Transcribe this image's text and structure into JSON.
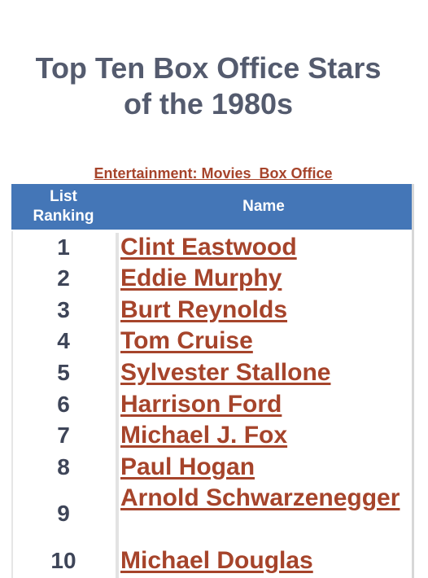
{
  "title_line1": "Top Ten Box Office Stars",
  "title_line2": "of the 1980s",
  "breadcrumb": "Entertainment: Movies  Box Office",
  "table": {
    "header_rank_line1": "List",
    "header_rank_line2": "Ranking",
    "header_name": "Name",
    "rows": [
      {
        "rank": "1",
        "name": "Clint Eastwood"
      },
      {
        "rank": "2",
        "name": "Eddie Murphy"
      },
      {
        "rank": "3",
        "name": "Burt Reynolds"
      },
      {
        "rank": "4",
        "name": "Tom Cruise"
      },
      {
        "rank": "5",
        "name": "Sylvester Stallone"
      },
      {
        "rank": "6",
        "name": "Harrison Ford"
      },
      {
        "rank": "7",
        "name": "Michael J. Fox"
      },
      {
        "rank": "8",
        "name": "Paul Hogan"
      },
      {
        "rank": "9",
        "name": "Arnold Schwarzenegger"
      },
      {
        "rank": "10",
        "name": "Michael Douglas"
      }
    ]
  },
  "colors": {
    "title": "#545b6e",
    "link": "#a6442b",
    "header_bg": "#4476b7",
    "rank_text": "#3e4558"
  }
}
